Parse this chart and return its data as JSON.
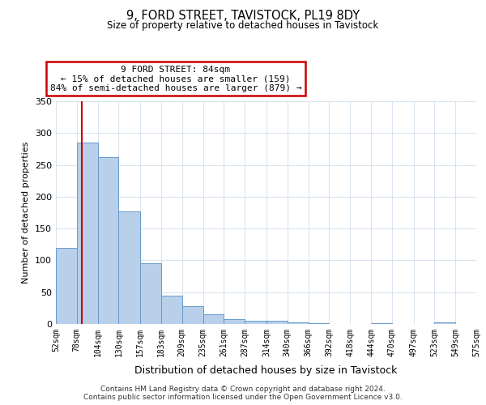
{
  "title": "9, FORD STREET, TAVISTOCK, PL19 8DY",
  "subtitle": "Size of property relative to detached houses in Tavistock",
  "xlabel": "Distribution of detached houses by size in Tavistock",
  "ylabel": "Number of detached properties",
  "bin_labels": [
    "52sqm",
    "78sqm",
    "104sqm",
    "130sqm",
    "157sqm",
    "183sqm",
    "209sqm",
    "235sqm",
    "261sqm",
    "287sqm",
    "314sqm",
    "340sqm",
    "366sqm",
    "392sqm",
    "418sqm",
    "444sqm",
    "470sqm",
    "497sqm",
    "523sqm",
    "549sqm",
    "575sqm"
  ],
  "bin_edges": [
    52,
    78,
    104,
    130,
    157,
    183,
    209,
    235,
    261,
    287,
    314,
    340,
    366,
    392,
    418,
    444,
    470,
    497,
    523,
    549,
    575
  ],
  "bar_heights": [
    120,
    285,
    262,
    177,
    95,
    45,
    28,
    15,
    8,
    5,
    5,
    3,
    1,
    0,
    0,
    1,
    0,
    0,
    2,
    0
  ],
  "bar_color": "#b8d0ea",
  "bar_edge_color": "#6699cc",
  "vline_x": 84,
  "vline_color": "#cc0000",
  "annotation_line1": "9 FORD STREET: 84sqm",
  "annotation_line2": "← 15% of detached houses are smaller (159)",
  "annotation_line3": "84% of semi-detached houses are larger (879) →",
  "annotation_box_facecolor": "#ffffff",
  "annotation_box_edgecolor": "#cc0000",
  "ylim": [
    0,
    350
  ],
  "yticks": [
    0,
    50,
    100,
    150,
    200,
    250,
    300,
    350
  ],
  "background_color": "#ffffff",
  "grid_color": "#d8e4f0",
  "footer_line1": "Contains HM Land Registry data © Crown copyright and database right 2024.",
  "footer_line2": "Contains public sector information licensed under the Open Government Licence v3.0."
}
